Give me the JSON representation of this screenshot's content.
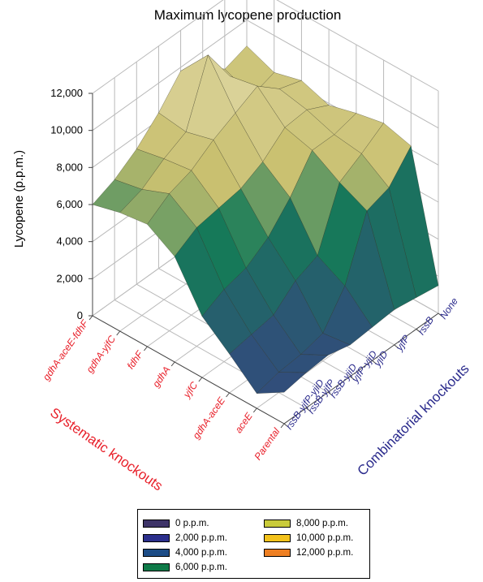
{
  "chart_data": {
    "type": "surface3d",
    "title": "Maximum lycopene production",
    "zlabel": "Lycopene (p.p.m.)",
    "zlim": [
      0,
      12000
    ],
    "z_ticks": [
      "0",
      "2,000",
      "4,000",
      "6,000",
      "8,000",
      "10,000",
      "12,000"
    ],
    "x_axis_label": "Systematic knockouts",
    "x_categories": [
      "gdhA-aceE-fdhF",
      "gdhA-yjfC",
      "fdhF",
      "gdhA",
      "yjfC",
      "gdhA-aceE",
      "aceE",
      "Parental"
    ],
    "y_axis_label": "Combinatorial knockouts",
    "y_categories": [
      "None",
      "rssB",
      "yjfP",
      "yjiD",
      "yjfP-yjiD",
      "rssB-yjiD",
      "rssB-yjfP",
      "rssB-yjfP-yjiD"
    ],
    "z_values": [
      [
        8600,
        8000,
        8400,
        7900,
        8300,
        8600,
        8200,
        1500
      ],
      [
        8200,
        7600,
        8800,
        8500,
        8000,
        7800,
        6800,
        1700
      ],
      [
        9300,
        9500,
        9800,
        8400,
        8000,
        7100,
        6400,
        1900
      ],
      [
        9800,
        11500,
        9200,
        7400,
        6300,
        4000,
        3200,
        1800
      ],
      [
        8400,
        8200,
        8600,
        6800,
        5000,
        3500,
        1500,
        1700
      ],
      [
        7300,
        7600,
        7800,
        6600,
        4200,
        2500,
        1200,
        2000
      ],
      [
        6500,
        6800,
        7400,
        6400,
        3900,
        2300,
        1100,
        1900
      ],
      [
        6000,
        6400,
        6600,
        5700,
        3300,
        2100,
        800,
        1700
      ]
    ],
    "color_scale": [
      {
        "label": "0 p.p.m.",
        "value": 0,
        "color": "#3e3468"
      },
      {
        "label": "2,000 p.p.m.",
        "value": 2000,
        "color": "#2b2f8c"
      },
      {
        "label": "4,000 p.p.m.",
        "value": 4000,
        "color": "#1c4c86"
      },
      {
        "label": "6,000 p.p.m.",
        "value": 6000,
        "color": "#0e7a48"
      },
      {
        "label": "8,000 p.p.m.",
        "value": 8000,
        "color": "#c9cb3a"
      },
      {
        "label": "10,000 p.p.m.",
        "value": 10000,
        "color": "#f3c21b"
      },
      {
        "label": "12,000 p.p.m.",
        "value": 12000,
        "color": "#ee7f22"
      }
    ],
    "surface_colors": {
      "low": "#3a3f86",
      "mid": "#157a58",
      "high": "#c9c070",
      "peak": "#e8e0b8",
      "mesh": "#2a2a1a"
    },
    "grid": true,
    "legend_position": "bottom"
  }
}
